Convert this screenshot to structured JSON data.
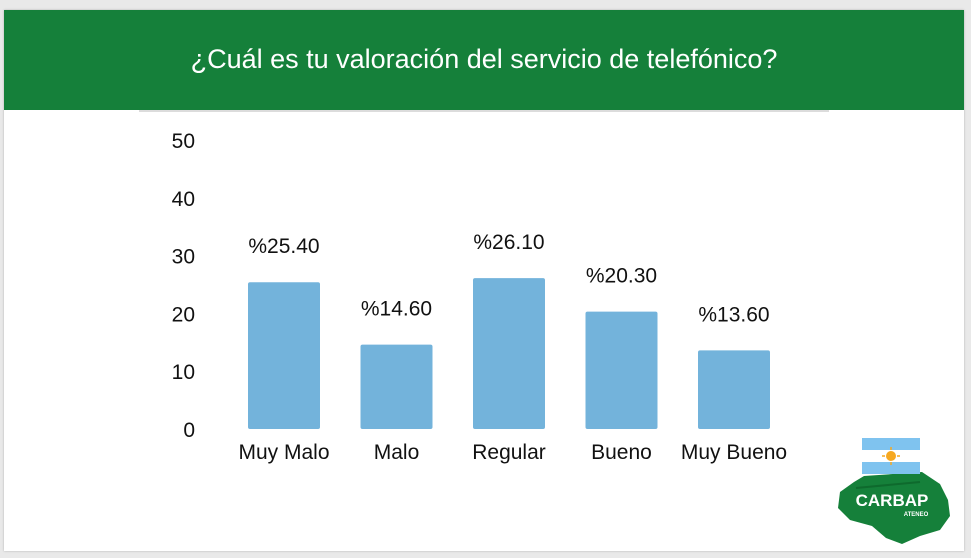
{
  "slide": {
    "title": "¿Cuál es tu valoración del servicio de telefónico?"
  },
  "logo": {
    "text": "CARBAP",
    "subtext": "ATENEO"
  },
  "colors": {
    "header": "#15803a",
    "bar": "#73b3db"
  },
  "chart_data": {
    "type": "bar",
    "title": "¿Cuál es tu valoración del servicio de telefónico?",
    "categories": [
      "Muy Malo",
      "Malo",
      "Regular",
      "Bueno",
      "Muy Bueno"
    ],
    "values": [
      25.4,
      14.6,
      26.1,
      20.3,
      13.6
    ],
    "data_labels": [
      "%25.40",
      "%14.60",
      "%26.10",
      "%20.30",
      "%13.60"
    ],
    "yticks": [
      0,
      10,
      20,
      30,
      40,
      50
    ],
    "ylim": [
      0,
      50
    ],
    "xlabel": "",
    "ylabel": "",
    "grid": false,
    "legend": "none"
  }
}
